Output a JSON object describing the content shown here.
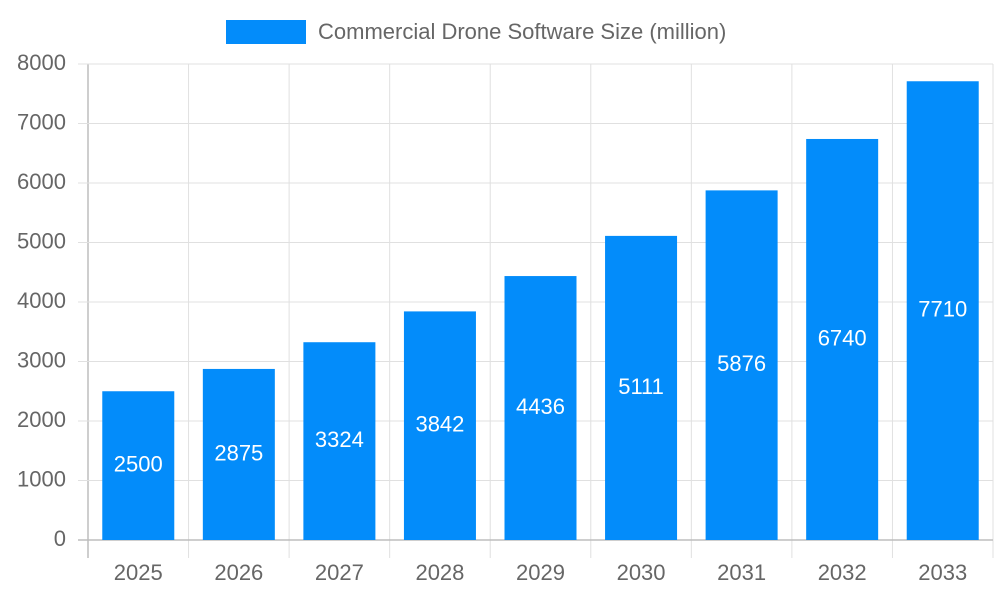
{
  "chart_data": {
    "type": "bar",
    "categories": [
      "2025",
      "2026",
      "2027",
      "2028",
      "2029",
      "2030",
      "2031",
      "2032",
      "2033"
    ],
    "series": [
      {
        "name": "Commercial Drone Software Size (million)",
        "color": "#038cfa",
        "values": [
          2500,
          2875,
          3324,
          3842,
          4436,
          5111,
          5876,
          6740,
          7710
        ]
      }
    ],
    "ylim": [
      0,
      8000
    ],
    "yticks": [
      0,
      1000,
      2000,
      3000,
      4000,
      5000,
      6000,
      7000,
      8000
    ],
    "grid": true,
    "legend": "top"
  }
}
